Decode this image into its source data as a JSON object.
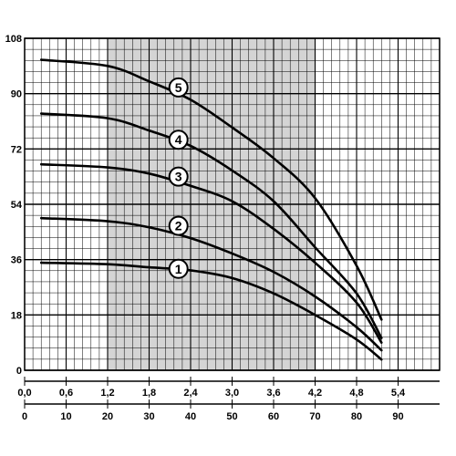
{
  "chart_data": {
    "type": "line",
    "title": "",
    "ylabel": "",
    "xlabel": "",
    "ylim": [
      0,
      108
    ],
    "y_ticks": [
      "0",
      "18",
      "36",
      "54",
      "72",
      "90",
      "108"
    ],
    "x_top_ticks": [
      "0,0",
      "0,6",
      "1,2",
      "1,8",
      "2,4",
      "3,0",
      "3,6",
      "4,2",
      "4,8",
      "5,4"
    ],
    "x_bottom_ticks": [
      "0",
      "10",
      "20",
      "30",
      "40",
      "50",
      "60",
      "70",
      "80",
      "90"
    ],
    "x_bottom_range": [
      0,
      100
    ],
    "shaded_range": [
      20,
      70
    ],
    "grid": true,
    "colors": {
      "curve": "#000000",
      "shade": "#d4d4d4",
      "grid": "#000000"
    },
    "series": [
      {
        "name": "1",
        "x": [
          4,
          20,
          30,
          40,
          50,
          60,
          70,
          80,
          86
        ],
        "y": [
          35,
          34.5,
          33.5,
          32.5,
          30,
          25,
          18,
          10,
          3.5
        ]
      },
      {
        "name": "2",
        "x": [
          4,
          20,
          30,
          40,
          50,
          60,
          70,
          80,
          86
        ],
        "y": [
          49.5,
          48.5,
          46.5,
          43,
          38,
          32,
          24,
          14,
          6.5
        ]
      },
      {
        "name": "3",
        "x": [
          4,
          20,
          30,
          40,
          50,
          60,
          70,
          80,
          86
        ],
        "y": [
          67,
          66,
          64,
          60,
          55,
          46,
          35,
          22,
          9
        ]
      },
      {
        "name": "4",
        "x": [
          4,
          20,
          30,
          40,
          50,
          60,
          70,
          80,
          86
        ],
        "y": [
          83.5,
          82,
          78,
          73,
          65,
          55,
          40,
          25,
          10.5
        ]
      },
      {
        "name": "5",
        "x": [
          4,
          20,
          30,
          40,
          50,
          60,
          70,
          80,
          86
        ],
        "y": [
          101,
          99,
          94,
          88,
          79,
          69,
          56,
          34,
          16.5
        ]
      }
    ],
    "label_positions": [
      {
        "name": "1",
        "x": 34,
        "y": 33
      },
      {
        "name": "2",
        "x": 34,
        "y": 47
      },
      {
        "name": "3",
        "x": 34,
        "y": 63
      },
      {
        "name": "4",
        "x": 34,
        "y": 75
      },
      {
        "name": "5",
        "x": 34,
        "y": 92
      }
    ]
  }
}
